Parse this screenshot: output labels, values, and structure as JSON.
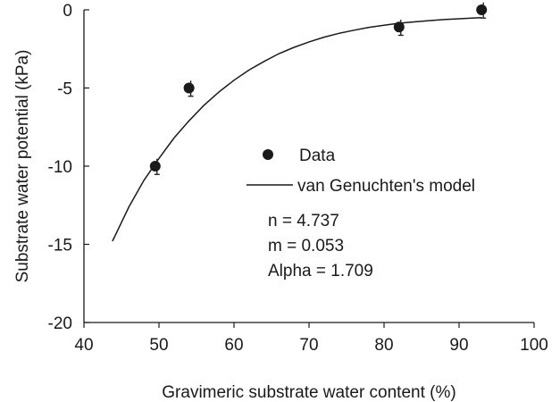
{
  "chart_data": {
    "type": "scatter",
    "xlabel": "Gravimeric substrate water content (%)",
    "ylabel": "Substrate water potential (kPa)",
    "xlim": [
      40,
      100
    ],
    "ylim": [
      -20,
      0
    ],
    "x_ticks": [
      40,
      50,
      60,
      70,
      80,
      90,
      100
    ],
    "y_ticks": [
      0,
      -5,
      -10,
      -15,
      -20
    ],
    "grid": false,
    "legend_position": "center-right",
    "series": [
      {
        "name": "Data",
        "kind": "scatter",
        "marker": "filled-circle",
        "color": "#1a1a1a",
        "x": [
          49.5,
          54,
          82,
          93
        ],
        "y": [
          -10.0,
          -5.0,
          -1.1,
          0.0
        ],
        "error": [
          0.3,
          0.3,
          0.3,
          0.3
        ]
      },
      {
        "name": "van Genuchten's model",
        "kind": "line",
        "color": "#1a1a1a",
        "x": [
          43.8,
          46,
          48,
          50,
          52,
          54,
          56,
          58,
          60,
          62,
          64,
          66,
          68,
          70,
          72,
          74,
          76,
          78,
          80,
          82,
          84,
          86,
          88,
          90,
          92,
          93
        ],
        "y": [
          -14.8,
          -12.6,
          -10.9,
          -9.5,
          -8.2,
          -7.1,
          -6.1,
          -5.25,
          -4.5,
          -3.85,
          -3.3,
          -2.8,
          -2.4,
          -2.05,
          -1.75,
          -1.5,
          -1.3,
          -1.12,
          -0.98,
          -0.86,
          -0.77,
          -0.69,
          -0.62,
          -0.57,
          -0.52,
          -0.5
        ]
      }
    ],
    "annotations": [
      "n = 4.737",
      "m = 0.053",
      "Alpha = 1.709"
    ]
  }
}
